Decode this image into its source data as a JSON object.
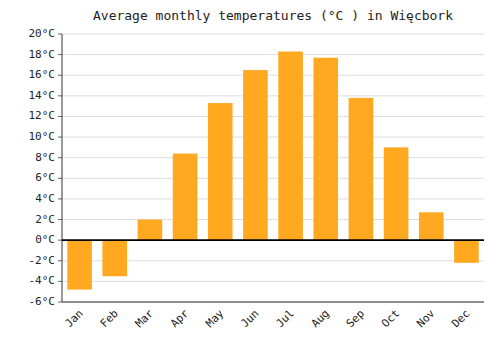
{
  "chart_data": {
    "type": "bar",
    "title": "Average monthly temperatures (°C ) in Więcbork",
    "categories": [
      "Jan",
      "Feb",
      "Mar",
      "Apr",
      "May",
      "Jun",
      "Jul",
      "Aug",
      "Sep",
      "Oct",
      "Nov",
      "Dec"
    ],
    "values": [
      -4.8,
      -3.5,
      2.0,
      8.4,
      13.3,
      16.5,
      18.3,
      17.7,
      13.8,
      9.0,
      2.7,
      -2.2
    ],
    "color": "#FFA820",
    "ylim": [
      -6,
      20
    ],
    "yticks": [
      {
        "value": -6,
        "label": "-6°C"
      },
      {
        "value": -4,
        "label": "-4°C"
      },
      {
        "value": -2,
        "label": "-2°C"
      },
      {
        "value": 0,
        "label": "0°C"
      },
      {
        "value": 2,
        "label": "2°C"
      },
      {
        "value": 4,
        "label": "4°C"
      },
      {
        "value": 6,
        "label": "6°C"
      },
      {
        "value": 8,
        "label": "8°C"
      },
      {
        "value": 10,
        "label": "10°C"
      },
      {
        "value": 12,
        "label": "12°C"
      },
      {
        "value": 14,
        "label": "14°C"
      },
      {
        "value": 16,
        "label": "16°C"
      },
      {
        "value": 18,
        "label": "18°C"
      },
      {
        "value": 20,
        "label": "20°C"
      }
    ],
    "grid": true
  }
}
